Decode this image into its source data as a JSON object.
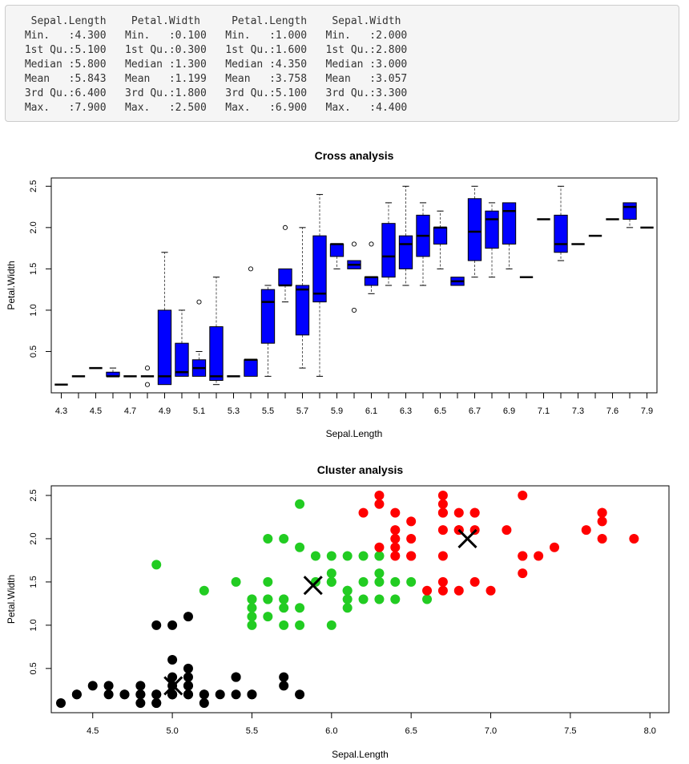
{
  "summary": {
    "text": "  Sepal.Length    Petal.Width     Petal.Length    Sepal.Width   \n Min.   :4.300   Min.   :0.100   Min.   :1.000   Min.   :2.000  \n 1st Qu.:5.100   1st Qu.:0.300   1st Qu.:1.600   1st Qu.:2.800  \n Median :5.800   Median :1.300   Median :4.350   Median :3.000  \n Mean   :5.843   Mean   :1.199   Mean   :3.758   Mean   :3.057  \n 3rd Qu.:6.400   3rd Qu.:1.800   3rd Qu.:5.100   3rd Qu.:3.300  \n Max.   :7.900   Max.   :2.500   Max.   :6.900   Max.   :4.400  "
  },
  "chart_data": [
    {
      "type": "boxplot",
      "title": "Cross analysis",
      "xlabel": "Sepal.Length",
      "ylabel": "Petal.Width",
      "ylim": [
        0.0,
        2.6
      ],
      "yticks": [
        "0.5",
        "1.0",
        "1.5",
        "2.0",
        "2.5"
      ],
      "grid": false,
      "box_color": "#0000ff",
      "categories": [
        "4.3",
        "4.4",
        "4.5",
        "4.6",
        "4.7",
        "4.8",
        "4.9",
        "5",
        "5.1",
        "5.2",
        "5.3",
        "5.4",
        "5.5",
        "5.6",
        "5.7",
        "5.8",
        "5.9",
        "6",
        "6.1",
        "6.2",
        "6.3",
        "6.4",
        "6.5",
        "6.6",
        "6.7",
        "6.8",
        "6.9",
        "7",
        "7.1",
        "7.2",
        "7.3",
        "7.4",
        "7.6",
        "7.7",
        "7.9"
      ],
      "xtick_labels": [
        "4.3",
        "",
        "4.5",
        "",
        "4.7",
        "",
        "4.9",
        "",
        "5.1",
        "",
        "5.3",
        "",
        "5.5",
        "",
        "5.7",
        "",
        "5.9",
        "",
        "6.1",
        "",
        "6.3",
        "",
        "6.5",
        "",
        "6.7",
        "",
        "6.9",
        "",
        "7.1",
        "",
        "7.3",
        "",
        "7.6",
        "",
        "7.9"
      ],
      "boxes": [
        {
          "lw": 0.1,
          "q1": 0.1,
          "med": 0.1,
          "q3": 0.1,
          "uw": 0.1,
          "out": []
        },
        {
          "lw": 0.2,
          "q1": 0.2,
          "med": 0.2,
          "q3": 0.2,
          "uw": 0.2,
          "out": []
        },
        {
          "lw": 0.3,
          "q1": 0.3,
          "med": 0.3,
          "q3": 0.3,
          "uw": 0.3,
          "out": []
        },
        {
          "lw": 0.2,
          "q1": 0.2,
          "med": 0.2,
          "q3": 0.25,
          "uw": 0.3,
          "out": []
        },
        {
          "lw": 0.2,
          "q1": 0.2,
          "med": 0.2,
          "q3": 0.2,
          "uw": 0.2,
          "out": []
        },
        {
          "lw": 0.2,
          "q1": 0.2,
          "med": 0.2,
          "q3": 0.2,
          "uw": 0.2,
          "out": [
            0.1,
            0.3
          ]
        },
        {
          "lw": 0.1,
          "q1": 0.1,
          "med": 0.2,
          "q3": 1.0,
          "uw": 1.7,
          "out": []
        },
        {
          "lw": 0.2,
          "q1": 0.2,
          "med": 0.25,
          "q3": 0.6,
          "uw": 1.0,
          "out": []
        },
        {
          "lw": 0.2,
          "q1": 0.2,
          "med": 0.3,
          "q3": 0.4,
          "uw": 0.5,
          "out": [
            1.1
          ]
        },
        {
          "lw": 0.1,
          "q1": 0.15,
          "med": 0.2,
          "q3": 0.8,
          "uw": 1.4,
          "out": []
        },
        {
          "lw": 0.2,
          "q1": 0.2,
          "med": 0.2,
          "q3": 0.2,
          "uw": 0.2,
          "out": []
        },
        {
          "lw": 0.2,
          "q1": 0.2,
          "med": 0.4,
          "q3": 0.4,
          "uw": 0.4,
          "out": [
            1.5
          ]
        },
        {
          "lw": 0.2,
          "q1": 0.6,
          "med": 1.1,
          "q3": 1.25,
          "uw": 1.3,
          "out": []
        },
        {
          "lw": 1.1,
          "q1": 1.3,
          "med": 1.3,
          "q3": 1.5,
          "uw": 1.5,
          "out": [
            2.0
          ]
        },
        {
          "lw": 0.3,
          "q1": 0.7,
          "med": 1.25,
          "q3": 1.3,
          "uw": 2.0,
          "out": []
        },
        {
          "lw": 0.2,
          "q1": 1.1,
          "med": 1.2,
          "q3": 1.9,
          "uw": 2.4,
          "out": []
        },
        {
          "lw": 1.5,
          "q1": 1.65,
          "med": 1.8,
          "q3": 1.8,
          "uw": 1.8,
          "out": []
        },
        {
          "lw": 1.5,
          "q1": 1.5,
          "med": 1.55,
          "q3": 1.6,
          "uw": 1.6,
          "out": [
            1.0,
            1.8
          ]
        },
        {
          "lw": 1.2,
          "q1": 1.3,
          "med": 1.4,
          "q3": 1.4,
          "uw": 1.4,
          "out": [
            1.8
          ]
        },
        {
          "lw": 1.3,
          "q1": 1.4,
          "med": 1.65,
          "q3": 2.05,
          "uw": 2.3,
          "out": []
        },
        {
          "lw": 1.3,
          "q1": 1.5,
          "med": 1.8,
          "q3": 1.9,
          "uw": 2.5,
          "out": []
        },
        {
          "lw": 1.3,
          "q1": 1.65,
          "med": 1.9,
          "q3": 2.15,
          "uw": 2.3,
          "out": []
        },
        {
          "lw": 1.5,
          "q1": 1.8,
          "med": 2.0,
          "q3": 2.0,
          "uw": 2.2,
          "out": []
        },
        {
          "lw": 1.3,
          "q1": 1.3,
          "med": 1.35,
          "q3": 1.4,
          "uw": 1.4,
          "out": []
        },
        {
          "lw": 1.4,
          "q1": 1.6,
          "med": 1.95,
          "q3": 2.35,
          "uw": 2.5,
          "out": []
        },
        {
          "lw": 1.4,
          "q1": 1.75,
          "med": 2.1,
          "q3": 2.2,
          "uw": 2.3,
          "out": []
        },
        {
          "lw": 1.5,
          "q1": 1.8,
          "med": 2.2,
          "q3": 2.3,
          "uw": 2.3,
          "out": []
        },
        {
          "lw": 1.4,
          "q1": 1.4,
          "med": 1.4,
          "q3": 1.4,
          "uw": 1.4,
          "out": []
        },
        {
          "lw": 2.1,
          "q1": 2.1,
          "med": 2.1,
          "q3": 2.1,
          "uw": 2.1,
          "out": []
        },
        {
          "lw": 1.6,
          "q1": 1.7,
          "med": 1.8,
          "q3": 2.15,
          "uw": 2.5,
          "out": []
        },
        {
          "lw": 1.8,
          "q1": 1.8,
          "med": 1.8,
          "q3": 1.8,
          "uw": 1.8,
          "out": []
        },
        {
          "lw": 1.9,
          "q1": 1.9,
          "med": 1.9,
          "q3": 1.9,
          "uw": 1.9,
          "out": []
        },
        {
          "lw": 2.1,
          "q1": 2.1,
          "med": 2.1,
          "q3": 2.1,
          "uw": 2.1,
          "out": []
        },
        {
          "lw": 2.0,
          "q1": 2.1,
          "med": 2.25,
          "q3": 2.3,
          "uw": 2.3,
          "out": []
        },
        {
          "lw": 2.0,
          "q1": 2.0,
          "med": 2.0,
          "q3": 2.0,
          "uw": 2.0,
          "out": []
        }
      ]
    },
    {
      "type": "scatter",
      "title": "Cluster analysis",
      "xlabel": "Sepal.Length",
      "ylabel": "Petal.Width",
      "xlim": [
        4.3,
        8.0
      ],
      "ylim": [
        0.0,
        2.6
      ],
      "xticks": [
        "4.5",
        "5.0",
        "5.5",
        "6.0",
        "6.5",
        "7.0",
        "7.5",
        "8.0"
      ],
      "yticks": [
        "0.5",
        "1.0",
        "1.5",
        "2.0",
        "2.5"
      ],
      "grid": false,
      "series": [
        {
          "color": "#000000",
          "x": [
            4.3,
            4.4,
            4.4,
            4.5,
            4.6,
            4.6,
            4.7,
            4.7,
            4.8,
            4.8,
            4.8,
            4.9,
            4.9,
            4.9,
            4.9,
            5.0,
            5.0,
            5.0,
            5.0,
            5.0,
            5.1,
            5.1,
            5.1,
            5.1,
            5.1,
            5.1,
            5.2,
            5.2,
            5.3,
            5.4,
            5.4,
            5.4,
            5.5,
            5.5,
            5.7,
            5.7,
            5.8,
            5.0,
            4.9,
            5.0,
            5.1,
            4.8,
            5.2,
            5.0
          ],
          "y": [
            0.1,
            0.2,
            0.2,
            0.3,
            0.2,
            0.3,
            0.2,
            0.2,
            0.1,
            0.2,
            0.3,
            0.1,
            0.2,
            0.2,
            0.1,
            0.2,
            0.3,
            0.4,
            0.6,
            0.2,
            0.2,
            0.3,
            0.4,
            0.5,
            0.3,
            0.2,
            0.1,
            0.2,
            0.2,
            0.2,
            0.4,
            0.4,
            0.2,
            0.2,
            0.3,
            0.4,
            0.2,
            1.0,
            1.0,
            0.2,
            1.1,
            0.2,
            0.2,
            0.2
          ]
        },
        {
          "color": "#22cc22",
          "x": [
            4.9,
            5.2,
            5.5,
            5.5,
            5.5,
            5.5,
            5.5,
            5.6,
            5.6,
            5.6,
            5.6,
            5.6,
            5.7,
            5.7,
            5.7,
            5.7,
            5.7,
            5.8,
            5.8,
            5.8,
            5.8,
            5.9,
            5.9,
            6.0,
            6.0,
            6.0,
            6.0,
            6.0,
            6.1,
            6.1,
            6.1,
            6.1,
            6.2,
            6.2,
            6.2,
            6.3,
            6.3,
            6.3,
            6.3,
            6.4,
            6.4,
            6.5,
            6.6,
            5.4,
            6.1,
            6.3
          ],
          "y": [
            1.7,
            1.4,
            1.0,
            1.1,
            1.2,
            1.3,
            1.3,
            1.1,
            1.3,
            1.3,
            1.5,
            2.0,
            1.0,
            1.2,
            1.3,
            1.3,
            2.0,
            1.0,
            1.2,
            1.9,
            2.4,
            1.5,
            1.8,
            1.0,
            1.5,
            1.6,
            1.8,
            1.5,
            1.2,
            1.3,
            1.4,
            1.8,
            1.3,
            1.5,
            1.8,
            1.3,
            1.5,
            1.6,
            1.8,
            1.3,
            1.5,
            1.5,
            1.3,
            1.5,
            1.4,
            1.8
          ]
        },
        {
          "color": "#ff0000",
          "x": [
            6.2,
            6.3,
            6.3,
            6.3,
            6.4,
            6.4,
            6.4,
            6.4,
            6.5,
            6.5,
            6.5,
            6.6,
            6.7,
            6.7,
            6.7,
            6.7,
            6.7,
            6.7,
            6.7,
            6.8,
            6.8,
            6.8,
            6.9,
            6.9,
            6.9,
            7.0,
            7.1,
            7.2,
            7.2,
            7.2,
            7.3,
            7.4,
            7.6,
            7.7,
            7.7,
            7.7,
            7.9,
            6.4,
            6.5,
            6.7,
            6.8,
            6.9,
            7.7,
            7.2
          ],
          "y": [
            2.3,
            1.9,
            2.4,
            2.5,
            2.3,
            2.1,
            1.9,
            2.0,
            2.2,
            1.8,
            2.0,
            1.4,
            2.5,
            2.3,
            2.1,
            1.8,
            1.5,
            1.4,
            2.4,
            2.3,
            2.1,
            1.4,
            2.3,
            2.1,
            1.5,
            1.4,
            2.1,
            2.5,
            1.8,
            1.6,
            1.8,
            1.9,
            2.1,
            2.3,
            2.2,
            2.0,
            2.0,
            1.8,
            1.8,
            2.3,
            2.1,
            2.3,
            2.3,
            1.8
          ]
        }
      ],
      "centers": [
        {
          "x": 5.006,
          "y": 0.3
        },
        {
          "x": 5.884,
          "y": 1.46
        },
        {
          "x": 6.854,
          "y": 2.0
        }
      ]
    }
  ]
}
